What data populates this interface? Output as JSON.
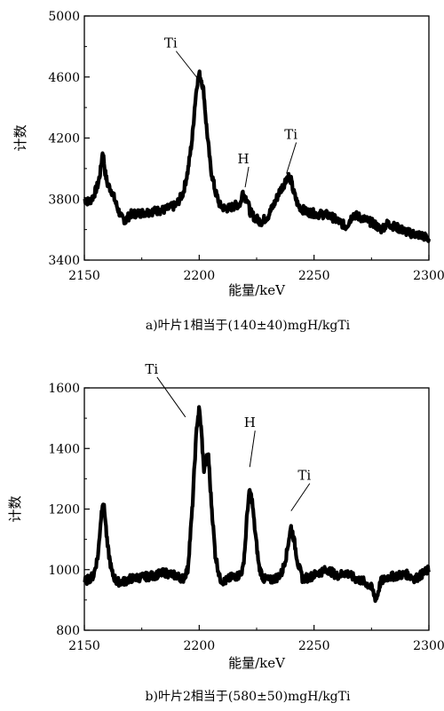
{
  "chart_data": [
    {
      "type": "line",
      "caption": "a)叶片1相当于(140±40)mgH/kgTi",
      "xlabel": "能量/keV",
      "ylabel": "计数",
      "xlim": [
        2150,
        2300
      ],
      "ylim": [
        3400,
        5000
      ],
      "xticks": [
        2150,
        2200,
        2250,
        2300
      ],
      "yticks": [
        3400,
        3800,
        4200,
        4600,
        5000
      ],
      "series": [
        {
          "x": [
            2150,
            2152,
            2154,
            2156,
            2157,
            2158,
            2159,
            2160,
            2162,
            2164,
            2166,
            2168,
            2170,
            2175,
            2180,
            2185,
            2190,
            2193,
            2195,
            2197,
            2198,
            2199,
            2200,
            2201,
            2202,
            2203,
            2205,
            2207,
            2209,
            2211,
            2213,
            2216,
            2218,
            2219,
            2220,
            2221,
            2222,
            2224,
            2227,
            2230,
            2233,
            2235,
            2237,
            2238,
            2239,
            2240,
            2241,
            2243,
            2246,
            2249,
            2252,
            2255,
            2258,
            2261,
            2264,
            2267,
            2270,
            2273,
            2276,
            2279,
            2282,
            2285,
            2288,
            2291,
            2294,
            2297,
            2300
          ],
          "y": [
            3800,
            3780,
            3820,
            3900,
            3980,
            4120,
            3980,
            3900,
            3850,
            3760,
            3680,
            3660,
            3700,
            3710,
            3720,
            3730,
            3760,
            3840,
            3980,
            4200,
            4400,
            4550,
            4620,
            4580,
            4500,
            4300,
            4000,
            3850,
            3760,
            3740,
            3740,
            3760,
            3770,
            3850,
            3810,
            3800,
            3720,
            3680,
            3650,
            3690,
            3780,
            3850,
            3900,
            3940,
            3950,
            3920,
            3850,
            3760,
            3720,
            3710,
            3700,
            3700,
            3680,
            3650,
            3620,
            3700,
            3680,
            3660,
            3640,
            3600,
            3640,
            3620,
            3600,
            3580,
            3570,
            3560,
            3540
          ]
        }
      ],
      "annotations": [
        {
          "text": "Ti",
          "x": 2200,
          "y": 4560
        },
        {
          "text": "H",
          "x": 2220,
          "y": 3860
        },
        {
          "text": "Ti",
          "x": 2238,
          "y": 3950
        }
      ]
    },
    {
      "type": "line",
      "caption": "b)叶片2相当于(580±50)mgH/kgTi",
      "xlabel": "能量/keV",
      "ylabel": "计数",
      "xlim": [
        2150,
        2300
      ],
      "ylim": [
        800,
        1600
      ],
      "xticks": [
        2150,
        2200,
        2250,
        2300
      ],
      "yticks": [
        800,
        1000,
        1200,
        1400,
        1600
      ],
      "series": [
        {
          "x": [
            2150,
            2152,
            2154,
            2156,
            2157,
            2158,
            2159,
            2160,
            2162,
            2164,
            2167,
            2170,
            2175,
            2180,
            2185,
            2190,
            2193,
            2195,
            2197,
            2198,
            2199,
            2200,
            2201,
            2202,
            2203,
            2204,
            2205,
            2207,
            2209,
            2211,
            2214,
            2217,
            2219,
            2220,
            2221,
            2222,
            2223,
            2224,
            2226,
            2228,
            2231,
            2234,
            2236,
            2238,
            2239,
            2240,
            2241,
            2243,
            2245,
            2248,
            2252,
            2256,
            2260,
            2264,
            2268,
            2272,
            2275,
            2277,
            2279,
            2282,
            2286,
            2290,
            2294,
            2297,
            2300
          ],
          "y": [
            960,
            970,
            980,
            1050,
            1150,
            1230,
            1180,
            1080,
            990,
            960,
            960,
            970,
            975,
            980,
            990,
            980,
            970,
            1000,
            1200,
            1350,
            1480,
            1530,
            1450,
            1330,
            1360,
            1380,
            1250,
            1050,
            970,
            960,
            975,
            980,
            1000,
            1080,
            1200,
            1260,
            1230,
            1150,
            1010,
            970,
            965,
            975,
            990,
            1050,
            1100,
            1140,
            1110,
            1020,
            970,
            975,
            990,
            1000,
            980,
            990,
            970,
            960,
            940,
            900,
            960,
            975,
            980,
            985,
            970,
            985,
            1000
          ]
        }
      ],
      "annotations": [
        {
          "text": "Ti",
          "x": 2194,
          "y": 1495
        },
        {
          "text": "H",
          "x": 2222,
          "y": 1330
        },
        {
          "text": "Ti",
          "x": 2240,
          "y": 1185
        }
      ]
    }
  ]
}
